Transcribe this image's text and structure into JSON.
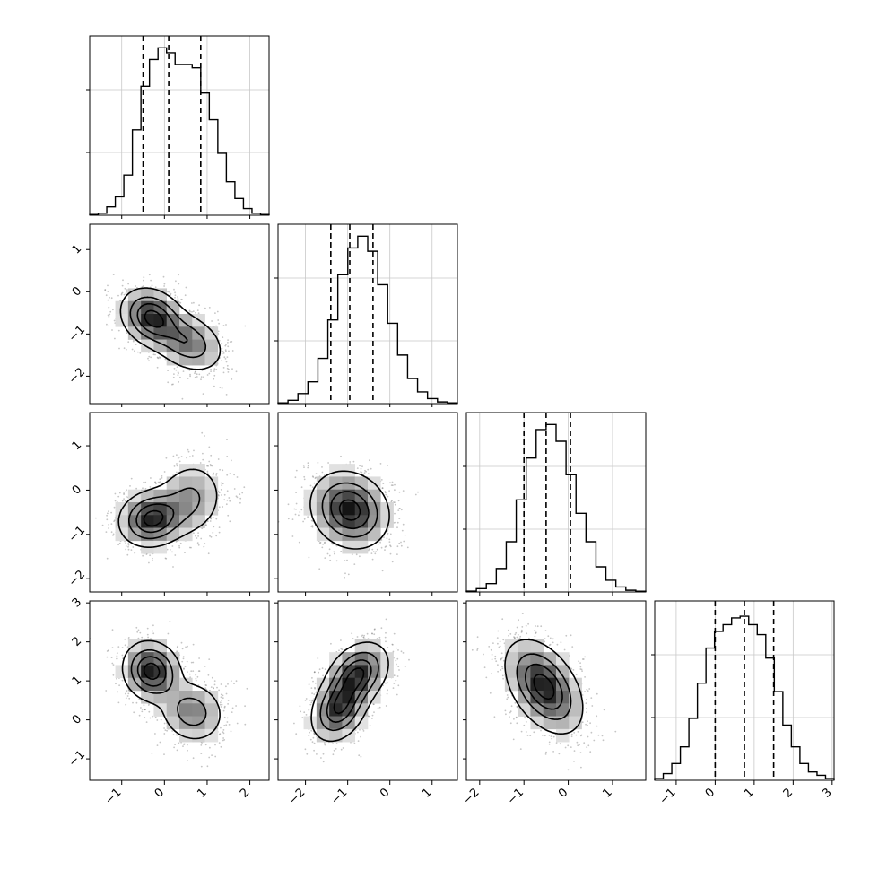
{
  "chart_data": {
    "type": "corner",
    "dimensions": 4,
    "variables": [
      {
        "index": 0,
        "range": [
          -1.75,
          2.45
        ],
        "ticks": [
          -1,
          0,
          1,
          2
        ],
        "tick_labels": [
          "−1",
          "0",
          "1",
          "2"
        ],
        "quantiles": [
          -0.5,
          0.1,
          0.85
        ],
        "histogram": [
          0.004,
          0.012,
          0.05,
          0.11,
          0.24,
          0.51,
          0.77,
          0.93,
          1.0,
          0.97,
          0.9,
          0.9,
          0.88,
          0.73,
          0.57,
          0.37,
          0.2,
          0.1,
          0.04,
          0.012,
          0.004
        ]
      },
      {
        "index": 1,
        "range": [
          -2.65,
          1.6
        ],
        "ticks": [
          -2,
          -1,
          0,
          1
        ],
        "tick_labels": [
          "−2",
          "−1",
          "0",
          "1"
        ],
        "quantiles": [
          -1.4,
          -0.95,
          -0.4
        ],
        "histogram": [
          0.004,
          0.02,
          0.06,
          0.13,
          0.27,
          0.5,
          0.77,
          0.93,
          1.0,
          0.91,
          0.71,
          0.48,
          0.29,
          0.15,
          0.07,
          0.03,
          0.01,
          0.004
        ]
      },
      {
        "index": 2,
        "range": [
          -2.3,
          1.75
        ],
        "ticks": [
          -2,
          -1,
          0,
          1
        ],
        "tick_labels": [
          "−2",
          "−1",
          "0",
          "1"
        ],
        "quantiles": [
          -1.0,
          -0.5,
          0.05
        ],
        "histogram": [
          0.005,
          0.02,
          0.05,
          0.14,
          0.3,
          0.55,
          0.8,
          0.97,
          1.0,
          0.9,
          0.7,
          0.47,
          0.3,
          0.15,
          0.07,
          0.03,
          0.01,
          0.004
        ]
      },
      {
        "index": 3,
        "range": [
          -1.55,
          3.05
        ],
        "ticks": [
          -1,
          0,
          1,
          2,
          3
        ],
        "tick_labels": [
          "−1",
          "0",
          "1",
          "2",
          "3"
        ],
        "quantiles": [
          0.0,
          0.75,
          1.5
        ],
        "histogram": [
          0.01,
          0.04,
          0.1,
          0.2,
          0.37,
          0.58,
          0.79,
          0.89,
          0.93,
          0.97,
          0.98,
          0.93,
          0.87,
          0.73,
          0.53,
          0.33,
          0.2,
          0.1,
          0.05,
          0.03,
          0.01
        ]
      }
    ],
    "pairs": [
      {
        "x": 0,
        "y": 1,
        "modes": [
          {
            "x": -0.3,
            "y": -0.6,
            "sx": 0.38,
            "sy": 0.36,
            "rho": -0.2,
            "w": 0.55
          },
          {
            "x": 0.55,
            "y": -1.2,
            "sx": 0.45,
            "sy": 0.38,
            "rho": -0.3,
            "w": 0.45
          }
        ]
      },
      {
        "x": 0,
        "y": 2,
        "modes": [
          {
            "x": -0.3,
            "y": -0.65,
            "sx": 0.4,
            "sy": 0.33,
            "rho": 0.1,
            "w": 0.6
          },
          {
            "x": 0.6,
            "y": -0.2,
            "sx": 0.42,
            "sy": 0.45,
            "rho": 0.1,
            "w": 0.4
          }
        ]
      },
      {
        "x": 1,
        "y": 2,
        "modes": [
          {
            "x": -0.95,
            "y": -0.45,
            "sx": 0.48,
            "sy": 0.45,
            "rho": -0.15,
            "w": 1.0
          }
        ]
      },
      {
        "x": 0,
        "y": 3,
        "modes": [
          {
            "x": -0.3,
            "y": 1.25,
            "sx": 0.35,
            "sy": 0.4,
            "rho": -0.1,
            "w": 0.6
          },
          {
            "x": 0.65,
            "y": 0.2,
            "sx": 0.4,
            "sy": 0.42,
            "rho": -0.1,
            "w": 0.4
          }
        ]
      },
      {
        "x": 1,
        "y": 3,
        "modes": [
          {
            "x": -1.2,
            "y": 0.3,
            "sx": 0.35,
            "sy": 0.45,
            "rho": 0.3,
            "w": 0.5
          },
          {
            "x": -0.75,
            "y": 1.2,
            "sx": 0.38,
            "sy": 0.42,
            "rho": 0.3,
            "w": 0.5
          }
        ]
      },
      {
        "x": 2,
        "y": 3,
        "modes": [
          {
            "x": -0.55,
            "y": 0.85,
            "sx": 0.45,
            "sy": 0.62,
            "rho": -0.45,
            "w": 1.0
          }
        ]
      }
    ],
    "contour_levels": [
      0.15,
      0.4,
      0.65,
      0.88
    ],
    "xlabel": "",
    "ylabel": "",
    "grid": true,
    "colors": {
      "line": "#000000",
      "scatter": "#7f7f7f",
      "grid": "#c8c8c8",
      "density": "#000000"
    }
  }
}
